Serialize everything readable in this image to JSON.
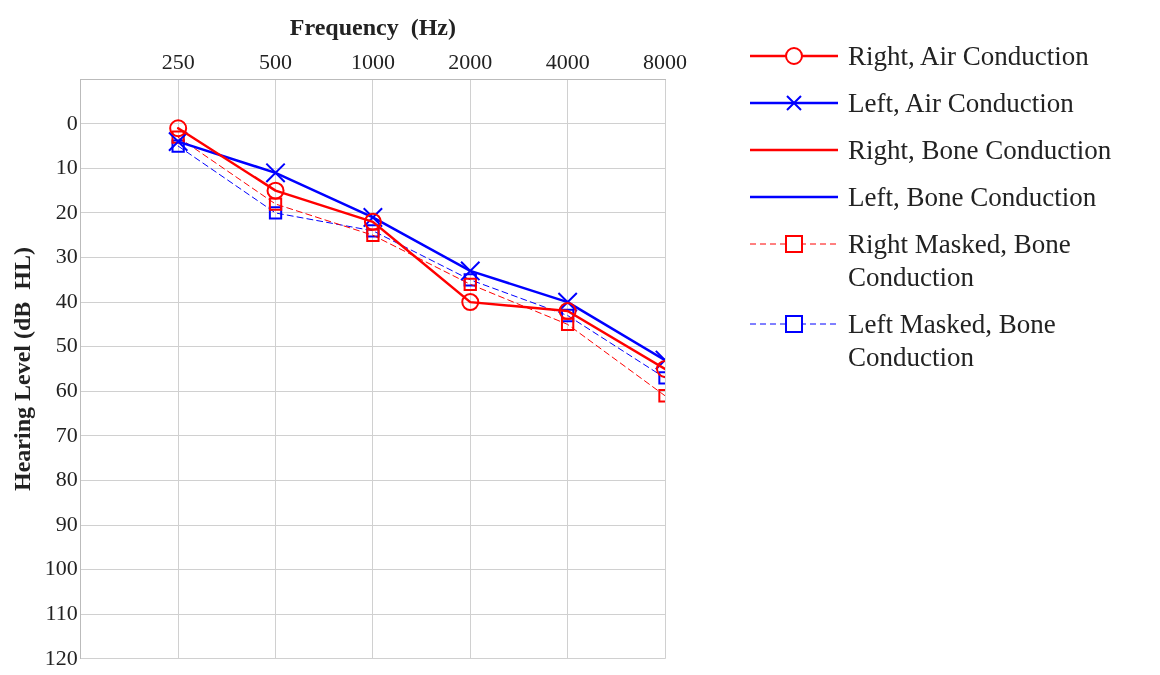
{
  "chart_data": {
    "type": "line",
    "xlabel": "Frequency  (Hz)",
    "ylabel": "Hearing Level (dB  HL)",
    "categories": [
      "250",
      "500",
      "1000",
      "2000",
      "4000",
      "8000"
    ],
    "ylim": [
      120,
      -10
    ],
    "yticks": [
      {
        "value": -10,
        "label": null
      },
      0,
      10,
      20,
      30,
      40,
      50,
      60,
      70,
      80,
      90,
      100,
      110,
      120
    ],
    "grid": true,
    "legend": "right",
    "series": [
      {
        "name": "Right, Air Conduction",
        "color": "#ff0000",
        "marker": "circle",
        "line_style": "solid",
        "values": [
          1,
          15,
          22,
          40,
          42,
          55
        ]
      },
      {
        "name": "Left, Air Conduction",
        "color": "#0000ff",
        "marker": "cross",
        "line_style": "solid",
        "values": [
          4,
          11,
          21,
          33,
          40,
          53
        ]
      },
      {
        "name": "Right, Bone Conduction",
        "color": "#ff0000",
        "marker": "none",
        "line_style": "solid",
        "values": [
          null,
          null,
          null,
          null,
          null,
          null
        ]
      },
      {
        "name": "Left, Bone Conduction",
        "color": "#0000ff",
        "marker": "none",
        "line_style": "solid",
        "values": [
          null,
          null,
          null,
          null,
          null,
          null
        ]
      },
      {
        "name": "Right Masked, Bone Conduction",
        "color": "#ff0000",
        "marker": "square",
        "line_style": "dashed",
        "values": [
          3,
          18,
          25,
          36,
          45,
          61
        ]
      },
      {
        "name": "Left Masked, Bone Conduction",
        "color": "#0000ff",
        "marker": "square",
        "line_style": "dashed",
        "values": [
          5,
          20,
          24,
          35,
          43,
          57
        ]
      }
    ]
  }
}
